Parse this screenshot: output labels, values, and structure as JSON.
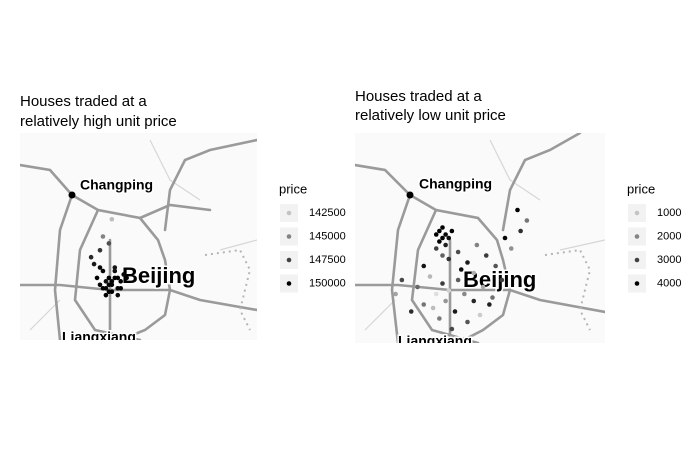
{
  "chart_data": [
    {
      "type": "scatter",
      "title": [
        "Houses traded at a",
        "relatively high unit price"
      ],
      "places": [
        "Changping",
        "Beijing",
        "Liangxiang"
      ],
      "xlim": [
        116.0,
        116.8
      ],
      "ylim": [
        39.7,
        40.3
      ],
      "x": [
        116.26,
        116.27,
        116.28,
        116.29,
        116.3,
        116.31,
        116.32,
        116.33,
        116.34,
        116.35,
        116.28,
        116.29,
        116.3,
        116.31,
        116.32,
        116.33,
        116.27,
        116.3,
        116.34,
        116.36,
        116.25,
        116.29,
        116.31,
        116.33,
        116.24,
        116.28,
        116.32,
        116.3,
        116.27,
        116.31
      ],
      "y": [
        39.88,
        39.86,
        39.85,
        39.87,
        39.84,
        39.86,
        39.88,
        39.85,
        39.87,
        39.89,
        39.9,
        39.83,
        39.86,
        39.84,
        39.9,
        39.88,
        39.91,
        39.88,
        39.85,
        39.88,
        39.92,
        39.85,
        39.87,
        39.83,
        39.94,
        40.0,
        39.91,
        39.98,
        39.96,
        40.05
      ],
      "values": [
        150000,
        149800,
        150000,
        149500,
        150000,
        149900,
        150000,
        149700,
        150000,
        149600,
        149800,
        150000,
        149900,
        150000,
        149400,
        150000,
        149700,
        150000,
        149800,
        149900,
        149000,
        150000,
        149800,
        149600,
        148500,
        145000,
        149200,
        147000,
        148000,
        142800
      ],
      "legend_title": "price",
      "legend_ticks": [
        142500,
        145000,
        147500,
        150000
      ],
      "colorscale": [
        "#c4c4c4",
        "#000000"
      ]
    },
    {
      "type": "scatter",
      "title": [
        "Houses traded at a",
        "relatively low unit price"
      ],
      "places": [
        "Changping",
        "Beijing",
        "Liangxiang"
      ],
      "xlim": [
        116.0,
        116.8
      ],
      "ylim": [
        39.7,
        40.3
      ],
      "x": [
        116.26,
        116.27,
        116.28,
        116.29,
        116.27,
        116.28,
        116.3,
        116.29,
        116.31,
        116.26,
        116.28,
        116.3,
        116.33,
        116.36,
        116.39,
        116.42,
        116.45,
        116.48,
        116.52,
        116.55,
        116.53,
        116.5,
        116.22,
        116.15,
        116.13,
        116.2,
        116.24,
        116.28,
        116.3,
        116.33,
        116.35,
        116.38,
        116.41,
        116.44,
        116.47,
        116.25,
        116.27,
        116.32,
        116.36,
        116.4,
        116.29,
        116.34,
        116.22,
        116.18,
        116.38,
        116.31,
        116.26,
        116.43
      ],
      "y": [
        40.01,
        40.02,
        40.0,
        40.01,
        39.99,
        40.03,
        40.0,
        39.98,
        40.02,
        39.97,
        39.95,
        39.94,
        39.96,
        39.93,
        39.98,
        39.95,
        39.92,
        40.0,
        40.08,
        40.05,
        40.02,
        39.97,
        39.92,
        39.88,
        39.84,
        39.86,
        39.89,
        39.87,
        39.85,
        39.88,
        39.84,
        39.82,
        39.86,
        39.83,
        39.88,
        39.8,
        39.77,
        39.79,
        39.76,
        39.78,
        39.82,
        39.91,
        39.81,
        39.79,
        39.9,
        39.74,
        39.84,
        39.81
      ],
      "values": [
        4200,
        4000,
        4300,
        3900,
        4100,
        4400,
        3800,
        3500,
        4000,
        3000,
        2500,
        3200,
        2800,
        3600,
        2000,
        3100,
        2700,
        3900,
        4300,
        2200,
        3300,
        1800,
        3700,
        2900,
        1500,
        2400,
        1200,
        3100,
        800,
        2600,
        1900,
        3400,
        1400,
        2300,
        3000,
        1100,
        2100,
        3600,
        2700,
        900,
        1700,
        3800,
        2200,
        3300,
        1300,
        2900,
        600,
        3500
      ],
      "legend_title": "price",
      "legend_ticks": [
        1000,
        2000,
        3000,
        4000
      ],
      "colorscale": [
        "#c4c4c4",
        "#000000"
      ]
    }
  ]
}
